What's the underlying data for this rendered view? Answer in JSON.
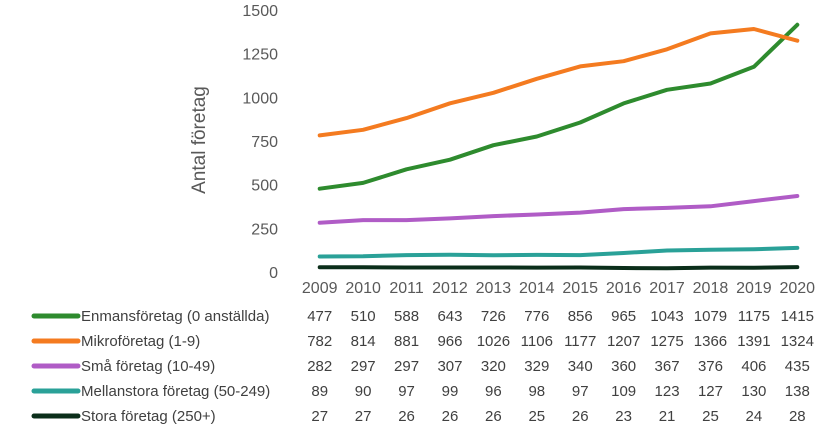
{
  "chart_data": {
    "type": "line",
    "title": "",
    "xlabel": "",
    "ylabel": "Antal företag",
    "ylim": [
      0,
      1500
    ],
    "yticks": [
      0,
      250,
      500,
      750,
      1000,
      1250,
      1500
    ],
    "grid": false,
    "categories": [
      "2009",
      "2010",
      "2011",
      "2012",
      "2013",
      "2014",
      "2015",
      "2016",
      "2017",
      "2018",
      "2019",
      "2020"
    ],
    "data_table": true,
    "series": [
      {
        "name": "Enmansföretag (0 anställda)",
        "color": "#2E8B2E",
        "values": [
          477,
          510,
          588,
          643,
          726,
          776,
          856,
          965,
          1043,
          1079,
          1175,
          1415
        ]
      },
      {
        "name": "Mikroföretag (1-9)",
        "color": "#F47B20",
        "values": [
          782,
          814,
          881,
          966,
          1026,
          1106,
          1177,
          1207,
          1275,
          1366,
          1391,
          1324
        ]
      },
      {
        "name": "Små företag (10-49)",
        "color": "#B05CC6",
        "values": [
          282,
          297,
          297,
          307,
          320,
          329,
          340,
          360,
          367,
          376,
          406,
          435
        ]
      },
      {
        "name": "Mellanstora företag (50-249)",
        "color": "#2AA198",
        "values": [
          89,
          90,
          97,
          99,
          96,
          98,
          97,
          109,
          123,
          127,
          130,
          138
        ]
      },
      {
        "name": "Stora företag (250+)",
        "color": "#0B2E1A",
        "values": [
          27,
          27,
          26,
          26,
          26,
          25,
          26,
          23,
          21,
          25,
          24,
          28
        ]
      }
    ]
  }
}
